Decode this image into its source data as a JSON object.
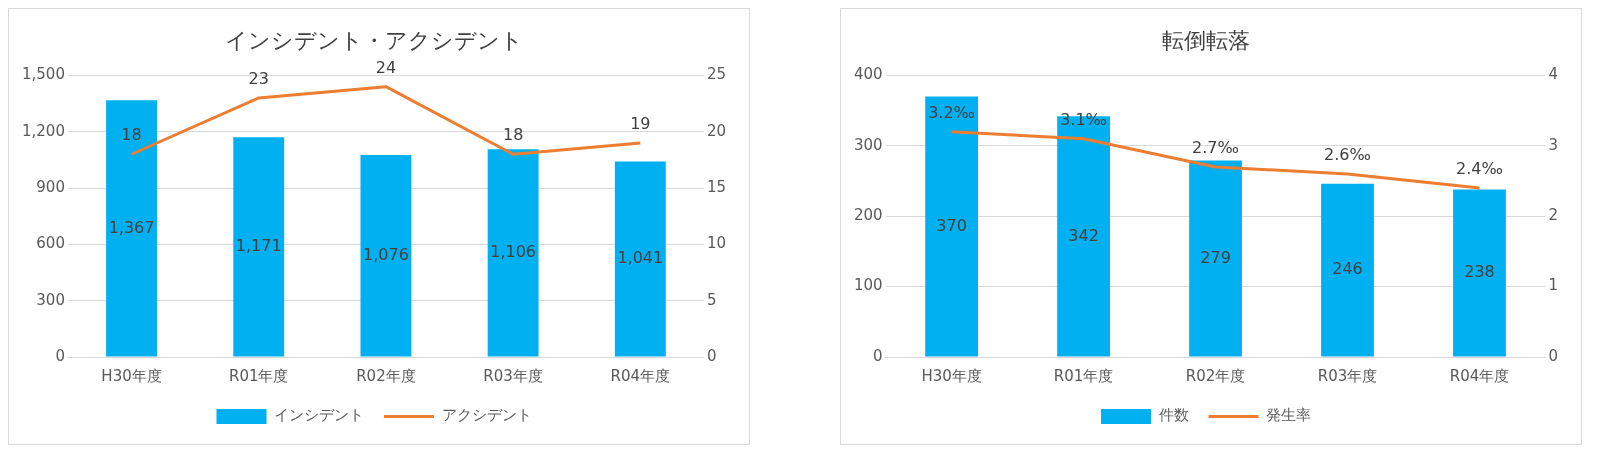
{
  "chart_data": [
    {
      "type": "bar",
      "title": "インシデント・アクシデント",
      "categories": [
        "H30年度",
        "R01年度",
        "R02年度",
        "R03年度",
        "R04年度"
      ],
      "series": [
        {
          "name": "インシデント",
          "color": "#00b0f0",
          "values": [
            1367,
            1171,
            1076,
            1106,
            1041
          ],
          "value_labels": [
            "1,367",
            "1,171",
            "1,076",
            "1,106",
            "1,041"
          ]
        },
        {
          "name": "アクシデント",
          "type": "line",
          "axis": "y2",
          "color": "#ed7d31",
          "values": [
            18,
            23,
            24,
            18,
            19
          ],
          "value_labels": [
            "18",
            "23",
            "24",
            "18",
            "19"
          ]
        }
      ],
      "ylim": [
        0,
        1500
      ],
      "yticks": [
        0,
        300,
        600,
        900,
        {
          "value": 1200,
          "label": "1,200"
        },
        {
          "value": 1500,
          "label": "1,500"
        }
      ],
      "y2lim": [
        0,
        25
      ],
      "y2ticks": [
        0,
        5,
        10,
        15,
        20,
        25
      ],
      "grid": "y",
      "legend": "bottom",
      "marker": "none"
    },
    {
      "type": "bar",
      "title": "転倒転落",
      "categories": [
        "H30年度",
        "R01年度",
        "R02年度",
        "R03年度",
        "R04年度"
      ],
      "series": [
        {
          "name": "件数",
          "color": "#00b0f0",
          "values": [
            370,
            342,
            279,
            246,
            238
          ],
          "value_labels": [
            "370",
            "342",
            "279",
            "246",
            "238"
          ]
        },
        {
          "name": "発生率",
          "type": "line",
          "axis": "y2",
          "color": "#ed7d31",
          "values": [
            3.2,
            3.1,
            2.7,
            2.6,
            2.4
          ],
          "value_labels": [
            "3.2‰",
            "3.1‰",
            "2.7‰",
            "2.6‰",
            "2.4‰"
          ]
        }
      ],
      "ylim": [
        0,
        400
      ],
      "yticks": [
        0,
        100,
        200,
        300,
        400
      ],
      "y2lim": [
        0,
        4
      ],
      "y2ticks": [
        0,
        1,
        2,
        3,
        4
      ],
      "grid": "y",
      "legend": "bottom",
      "marker": "none"
    }
  ]
}
